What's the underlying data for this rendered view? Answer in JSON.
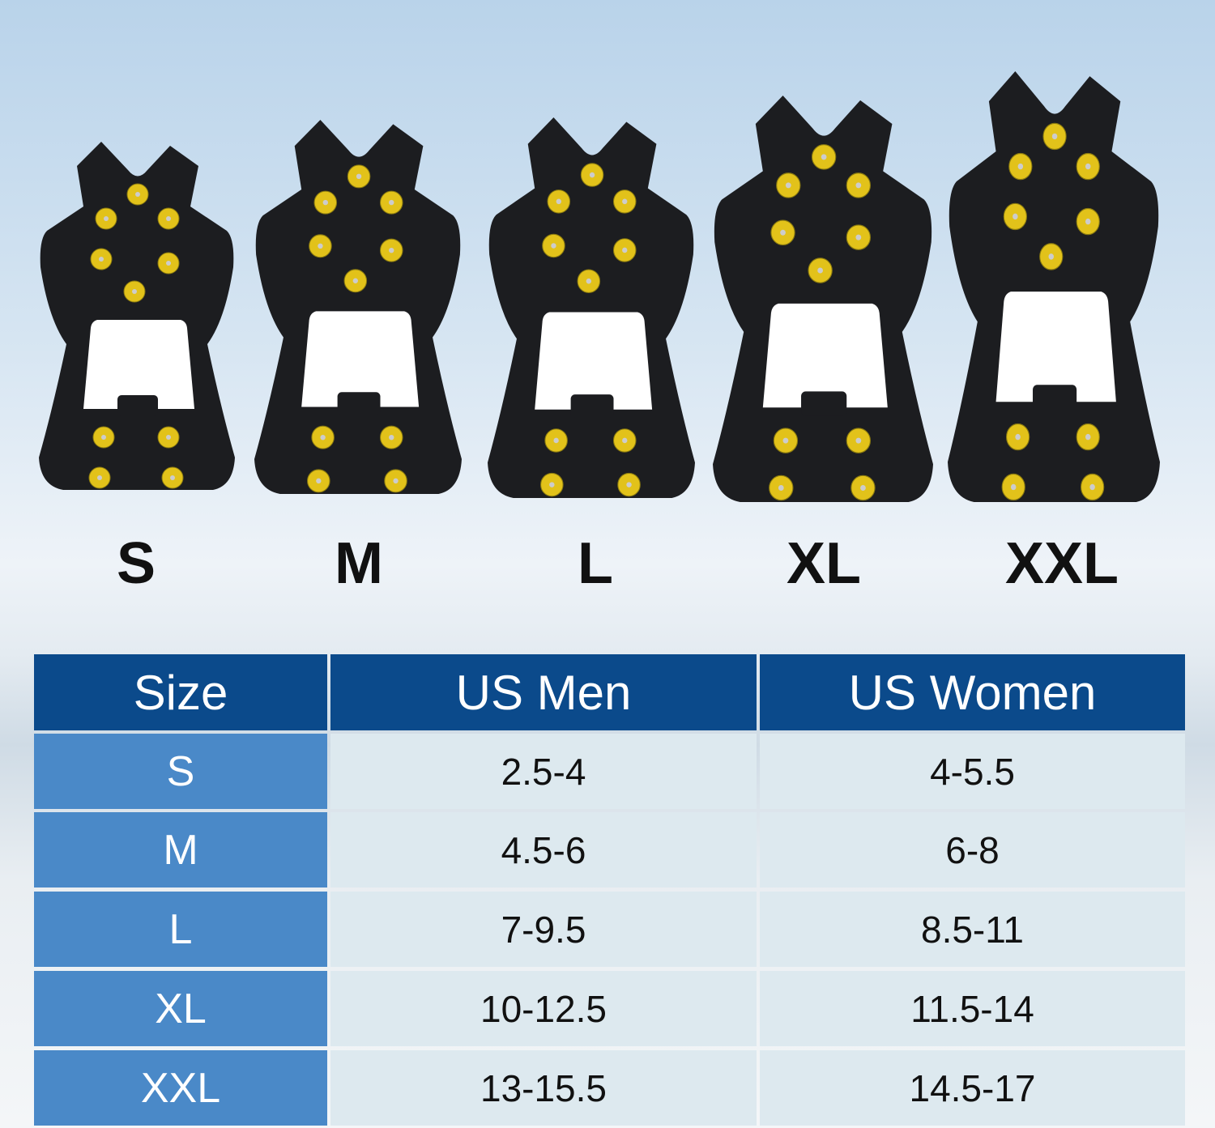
{
  "sizes": [
    "S",
    "M",
    "L",
    "XL",
    "XXL"
  ],
  "colors": {
    "header": "#0b4a8b",
    "size_cell": "#4a89c8",
    "value_cell": "#dde9ef",
    "cleat": "#1c1d20",
    "stud": "#e2c21a"
  },
  "table": {
    "headers": [
      "Size",
      "US Men",
      "US Women"
    ],
    "rows": [
      {
        "size": "S",
        "men": "2.5-4",
        "women": "4-5.5"
      },
      {
        "size": "M",
        "men": "4.5-6",
        "women": "6-8"
      },
      {
        "size": "L",
        "men": "7-9.5",
        "women": "8.5-11"
      },
      {
        "size": "XL",
        "men": "10-12.5",
        "women": "11.5-14"
      },
      {
        "size": "XXL",
        "men": "13-15.5",
        "women": "14.5-17"
      }
    ]
  }
}
